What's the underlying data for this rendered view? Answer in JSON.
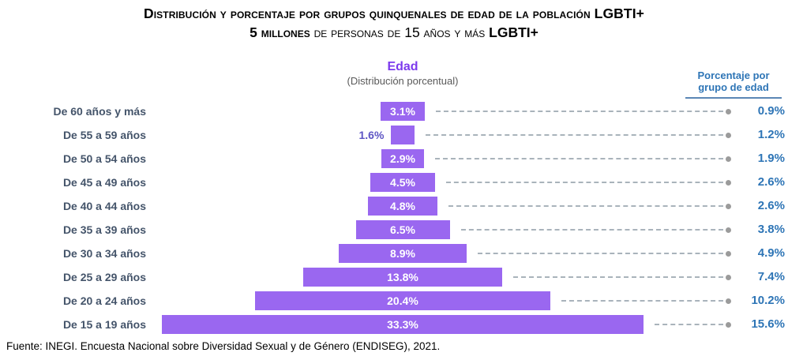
{
  "title": {
    "line1": "Distribución y porcentaje por grupos quinquenales de edad de la población LGBTI+",
    "line2": {
      "bold_lead": "5 millones",
      "middle": " de personas de 15 años y más ",
      "bold_tail": "LGBTI+"
    }
  },
  "chart_header": {
    "axis_title": "Edad",
    "axis_subtitle": "(Distribución porcentual)",
    "right_column_title": "Porcentaje por grupo de edad"
  },
  "source": "Fuente: INEGI. Encuesta Nacional sobre Diversidad Sexual y de Género (ENDISEG), 2021.",
  "colors": {
    "bar": "#9a67f0",
    "bar_label": "#ffffff",
    "outside_bar_label": "#5e55c4",
    "axis_title": "#7c3aed",
    "axis_subtitle": "#595959",
    "age_labels": "#44546a",
    "right_values": "#2e75b6",
    "dashed_line": "#a9b3bb",
    "dot": "#9b9b9b",
    "title_text": "#000000"
  },
  "chart_data": {
    "type": "bar",
    "orientation": "horizontal-centered-pyramid",
    "title": "Edad (Distribución porcentual)",
    "legend_position": "none",
    "grid": false,
    "xlim": [
      0,
      33.3
    ],
    "categories": [
      "De 60 años y más",
      "De 55 a 59 años",
      "De 50 a 54 años",
      "De 45 a 49 años",
      "De 40 a 44 años",
      "De 35 a 39 años",
      "De 30 a 34 años",
      "De 25 a 29 años",
      "De 20 a 24 años",
      "De 15 a 19 años"
    ],
    "series": [
      {
        "name": "Distribución porcentual (%)",
        "values": [
          3.1,
          1.6,
          2.9,
          4.5,
          4.8,
          6.5,
          8.9,
          13.8,
          20.4,
          33.3
        ]
      },
      {
        "name": "Porcentaje por grupo de edad (%)",
        "values": [
          0.9,
          1.2,
          1.9,
          2.6,
          2.6,
          3.8,
          4.9,
          7.4,
          10.2,
          15.6
        ]
      }
    ],
    "rows": [
      {
        "label": "De 60 años y más",
        "dist": 3.1,
        "dist_label": "3.1%",
        "pct_label": "0.9%"
      },
      {
        "label": "De 55 a 59 años",
        "dist": 1.6,
        "dist_label": "1.6%",
        "pct_label": "1.2%"
      },
      {
        "label": "De 50 a 54 años",
        "dist": 2.9,
        "dist_label": "2.9%",
        "pct_label": "1.9%"
      },
      {
        "label": "De 45 a 49 años",
        "dist": 4.5,
        "dist_label": "4.5%",
        "pct_label": "2.6%"
      },
      {
        "label": "De 40 a 44 años",
        "dist": 4.8,
        "dist_label": "4.8%",
        "pct_label": "2.6%"
      },
      {
        "label": "De 35 a 39 años",
        "dist": 6.5,
        "dist_label": "6.5%",
        "pct_label": "3.8%"
      },
      {
        "label": "De 30 a 34 años",
        "dist": 8.9,
        "dist_label": "8.9%",
        "pct_label": "4.9%"
      },
      {
        "label": "De 25 a 29 años",
        "dist": 13.8,
        "dist_label": "13.8%",
        "pct_label": "7.4%"
      },
      {
        "label": "De 20 a 24 años",
        "dist": 20.4,
        "dist_label": "20.4%",
        "pct_label": "10.2%"
      },
      {
        "label": "De 15 a 19 años",
        "dist": 33.3,
        "dist_label": "33.3%",
        "pct_label": "15.6%"
      }
    ]
  }
}
